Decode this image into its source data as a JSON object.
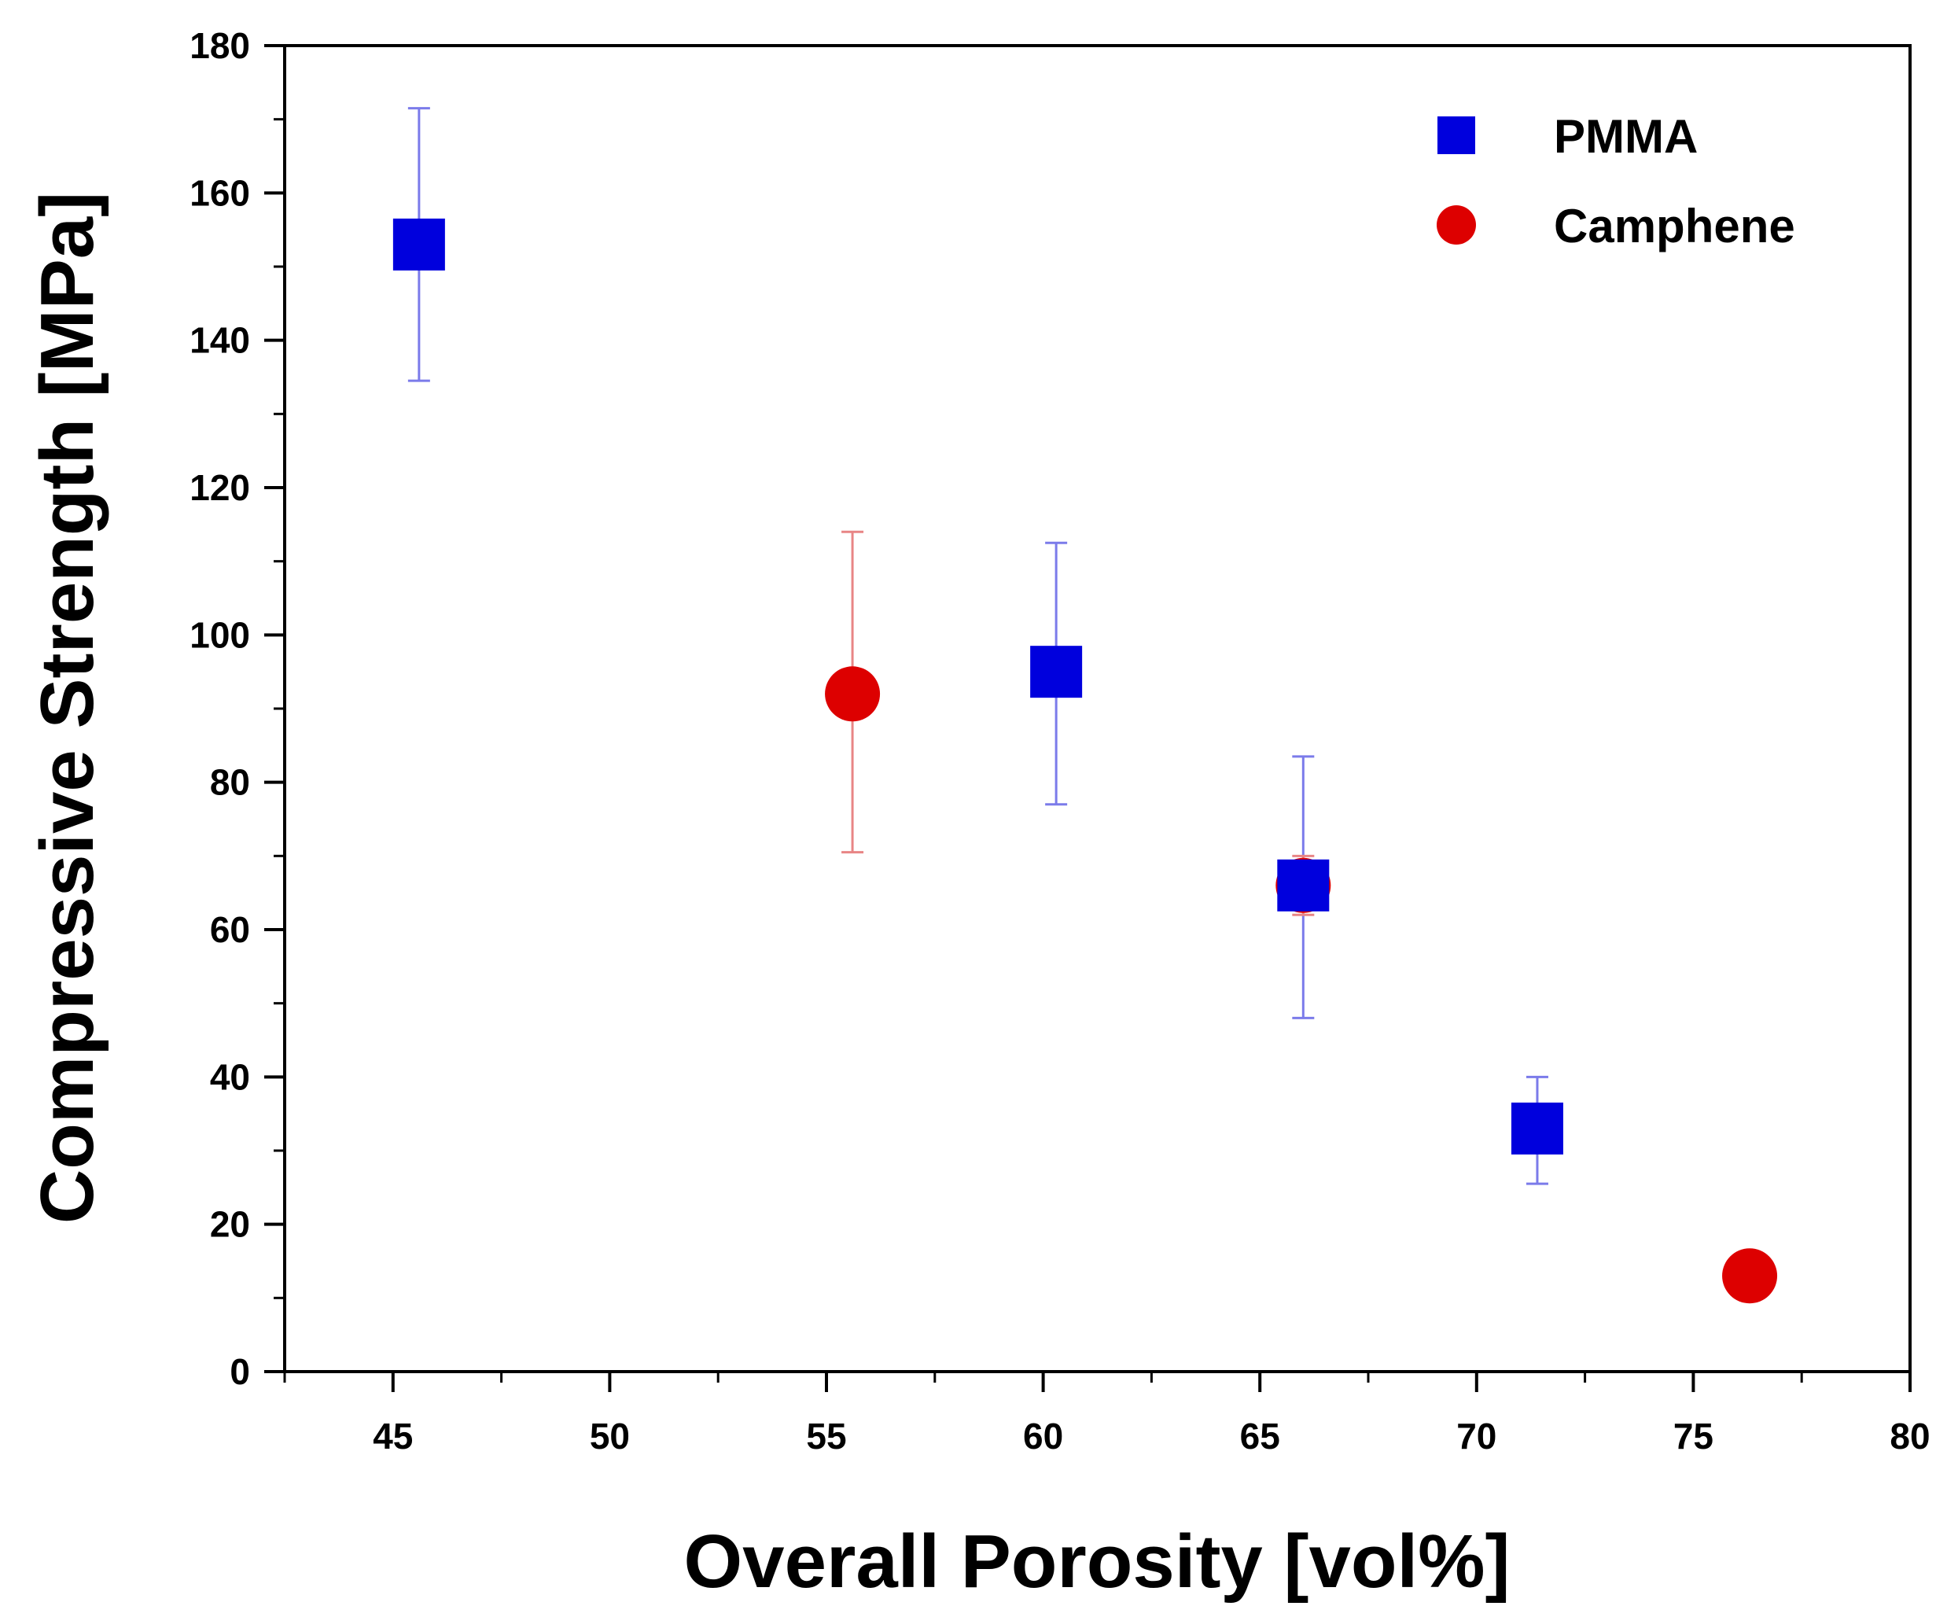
{
  "chart_data": {
    "type": "scatter",
    "title": "",
    "xlabel": "Overall Porosity [vol%]",
    "ylabel": "Compressive Strength [MPa]",
    "xlim": [
      42.5,
      80
    ],
    "ylim": [
      0,
      180
    ],
    "xticks": [
      "45",
      "50",
      "55",
      "60",
      "65",
      "70",
      "75",
      "80"
    ],
    "yticks": [
      "0",
      "20",
      "40",
      "60",
      "80",
      "100",
      "120",
      "140",
      "160",
      "180"
    ],
    "grid": false,
    "legend_position": "top-right",
    "series": [
      {
        "name": "PMMA",
        "marker": "square",
        "color": "#0000dd",
        "errorbar_color": "#7b7bea",
        "points": [
          {
            "x": 45.6,
            "y": 153,
            "err_low": 134.5,
            "err_high": 171.5
          },
          {
            "x": 60.3,
            "y": 95,
            "err_low": 77,
            "err_high": 112.5
          },
          {
            "x": 66.0,
            "y": 66,
            "err_low": 48,
            "err_high": 83.5
          },
          {
            "x": 71.4,
            "y": 33,
            "err_low": 25.5,
            "err_high": 40
          }
        ]
      },
      {
        "name": "Camphene",
        "marker": "circle",
        "color": "#dd0000",
        "errorbar_color": "#e88585",
        "points": [
          {
            "x": 55.6,
            "y": 92,
            "err_low": 70.5,
            "err_high": 114
          },
          {
            "x": 66.0,
            "y": 66,
            "err_low": 62,
            "err_high": 70
          },
          {
            "x": 76.3,
            "y": 13,
            "err_low": 13,
            "err_high": 13
          }
        ]
      }
    ]
  }
}
